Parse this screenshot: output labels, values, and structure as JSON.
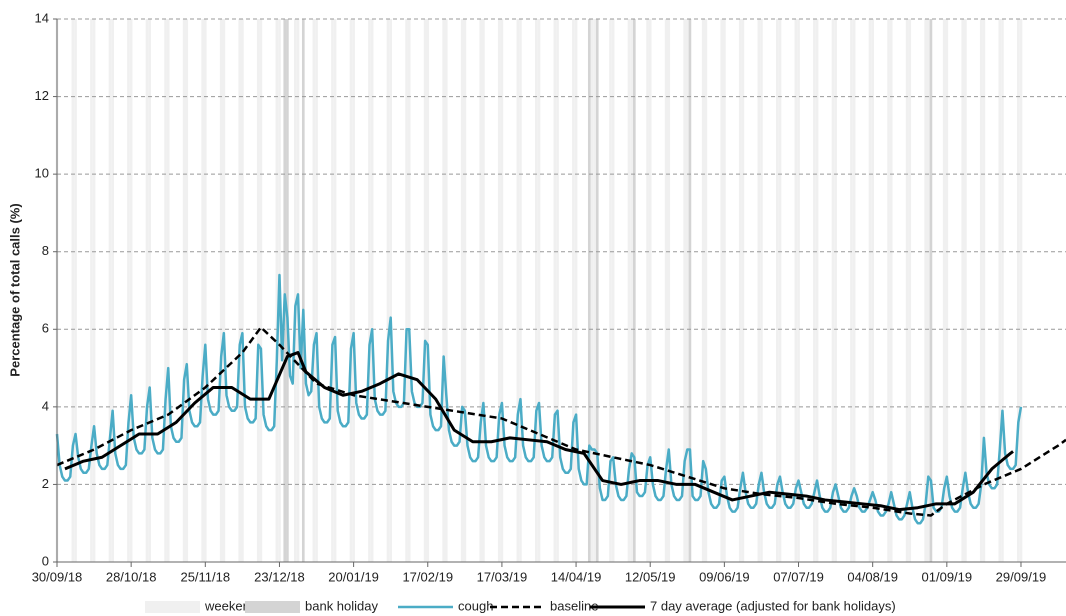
{
  "chart_data": {
    "type": "line",
    "y_label": "Percentage of total calls (%)",
    "xlim": [
      0,
      381
    ],
    "ylim": [
      0,
      14
    ],
    "yticks": [
      0,
      2,
      4,
      6,
      8,
      10,
      12,
      14
    ],
    "xticks": [
      {
        "value": 0,
        "label": "30/09/18"
      },
      {
        "value": 28,
        "label": "28/10/18"
      },
      {
        "value": 56,
        "label": "25/11/18"
      },
      {
        "value": 84,
        "label": "23/12/18"
      },
      {
        "value": 112,
        "label": "20/01/19"
      },
      {
        "value": 140,
        "label": "17/02/19"
      },
      {
        "value": 168,
        "label": "17/03/19"
      },
      {
        "value": 196,
        "label": "14/04/19"
      },
      {
        "value": 224,
        "label": "12/05/19"
      },
      {
        "value": 252,
        "label": "09/06/19"
      },
      {
        "value": 280,
        "label": "07/07/19"
      },
      {
        "value": 308,
        "label": "04/08/19"
      },
      {
        "value": 336,
        "label": "01/09/19"
      },
      {
        "value": 364,
        "label": "29/09/19"
      }
    ],
    "grid": true,
    "series": [
      {
        "name": "weekend",
        "kind": "shade",
        "color": "#f0f0f0",
        "x": [
          0,
          6,
          7,
          13,
          14,
          20,
          21,
          27,
          28,
          34,
          35,
          41,
          42,
          48,
          49,
          55,
          56,
          62,
          63,
          69,
          70,
          76,
          77,
          83,
          84,
          90,
          91,
          97,
          98,
          104,
          105,
          111,
          112,
          118,
          119,
          125,
          126,
          132,
          133,
          139,
          140,
          146,
          147,
          153,
          154,
          160,
          161,
          167,
          168,
          174,
          175,
          181,
          182,
          188,
          189,
          195,
          196,
          202,
          203,
          209,
          210,
          216,
          217,
          223,
          224,
          230,
          231,
          237,
          238,
          244,
          245,
          251,
          252,
          258,
          259,
          265,
          266,
          272,
          273,
          279,
          280,
          286,
          287,
          293,
          294,
          300,
          301,
          307,
          308,
          314,
          315,
          321,
          322,
          328,
          329,
          335,
          336,
          342,
          343,
          349,
          350,
          356,
          357,
          363,
          364
        ]
      },
      {
        "name": "bank holiday",
        "kind": "shade",
        "color": "#d4d4d4",
        "x": [
          86,
          87,
          93,
          201,
          204,
          218,
          239,
          330
        ]
      },
      {
        "name": "cough",
        "kind": "line",
        "color": "#4bacc6",
        "width": 2.5,
        "dash": false,
        "x": [
          0,
          1,
          2,
          3,
          4,
          5,
          6,
          7,
          8,
          9,
          10,
          11,
          12,
          13,
          14,
          15,
          16,
          17,
          18,
          19,
          20,
          21,
          22,
          23,
          24,
          25,
          26,
          27,
          28,
          29,
          30,
          31,
          32,
          33,
          34,
          35,
          36,
          37,
          38,
          39,
          40,
          41,
          42,
          43,
          44,
          45,
          46,
          47,
          48,
          49,
          50,
          51,
          52,
          53,
          54,
          55,
          56,
          57,
          58,
          59,
          60,
          61,
          62,
          63,
          64,
          65,
          66,
          67,
          68,
          69,
          70,
          71,
          72,
          73,
          74,
          75,
          76,
          77,
          78,
          79,
          80,
          81,
          82,
          83,
          84,
          85,
          86,
          87,
          88,
          89,
          90,
          91,
          92,
          93,
          94,
          95,
          96,
          97,
          98,
          99,
          100,
          101,
          102,
          103,
          104,
          105,
          106,
          107,
          108,
          109,
          110,
          111,
          112,
          113,
          114,
          115,
          116,
          117,
          118,
          119,
          120,
          121,
          122,
          123,
          124,
          125,
          126,
          127,
          128,
          129,
          130,
          131,
          132,
          133,
          134,
          135,
          136,
          137,
          138,
          139,
          140,
          141,
          142,
          143,
          144,
          145,
          146,
          147,
          148,
          149,
          150,
          151,
          152,
          153,
          154,
          155,
          156,
          157,
          158,
          159,
          160,
          161,
          162,
          163,
          164,
          165,
          166,
          167,
          168,
          169,
          170,
          171,
          172,
          173,
          174,
          175,
          176,
          177,
          178,
          179,
          180,
          181,
          182,
          183,
          184,
          185,
          186,
          187,
          188,
          189,
          190,
          191,
          192,
          193,
          194,
          195,
          196,
          197,
          198,
          199,
          200,
          201,
          202,
          203,
          204,
          205,
          206,
          207,
          208,
          209,
          210,
          211,
          212,
          213,
          214,
          215,
          216,
          217,
          218,
          219,
          220,
          221,
          222,
          223,
          224,
          225,
          226,
          227,
          228,
          229,
          230,
          231,
          232,
          233,
          234,
          235,
          236,
          237,
          238,
          239,
          240,
          241,
          242,
          243,
          244,
          245,
          246,
          247,
          248,
          249,
          250,
          251,
          252,
          253,
          254,
          255,
          256,
          257,
          258,
          259,
          260,
          261,
          262,
          263,
          264,
          265,
          266,
          267,
          268,
          269,
          270,
          271,
          272,
          273,
          274,
          275,
          276,
          277,
          278,
          279,
          280,
          281,
          282,
          283,
          284,
          285,
          286,
          287,
          288,
          289,
          290,
          291,
          292,
          293,
          294,
          295,
          296,
          297,
          298,
          299,
          300,
          301,
          302,
          303,
          304,
          305,
          306,
          307,
          308,
          309,
          310,
          311,
          312,
          313,
          314,
          315,
          316,
          317,
          318,
          319,
          320,
          321,
          322,
          323,
          324,
          325,
          326,
          327,
          328,
          329,
          330,
          331,
          332,
          333,
          334,
          335,
          336,
          337,
          338,
          339,
          340,
          341,
          342,
          343,
          344,
          345,
          346,
          347,
          348,
          349,
          350,
          351,
          352,
          353,
          354,
          355,
          356,
          357,
          358,
          359,
          360,
          361,
          362,
          363,
          364
        ],
        "values": [
          3.3,
          2.5,
          2.2,
          2.1,
          2.1,
          2.2,
          3.0,
          3.3,
          2.7,
          2.4,
          2.3,
          2.3,
          2.4,
          3.0,
          3.5,
          2.8,
          2.5,
          2.4,
          2.4,
          2.5,
          3.2,
          3.9,
          2.8,
          2.5,
          2.4,
          2.4,
          2.5,
          3.6,
          4.3,
          3.2,
          2.9,
          2.8,
          2.8,
          2.9,
          4.0,
          4.5,
          3.2,
          2.9,
          2.8,
          2.8,
          2.9,
          4.2,
          5.0,
          3.5,
          3.2,
          3.1,
          3.1,
          3.2,
          4.7,
          5.1,
          3.9,
          3.6,
          3.5,
          3.5,
          3.6,
          4.8,
          5.6,
          4.2,
          3.9,
          3.8,
          3.8,
          3.9,
          5.3,
          5.9,
          4.3,
          4.0,
          3.9,
          3.9,
          4.0,
          5.6,
          5.9,
          4.0,
          3.7,
          3.6,
          3.6,
          3.7,
          5.6,
          5.5,
          3.8,
          3.5,
          3.4,
          3.4,
          3.5,
          5.2,
          7.4,
          5.2,
          6.9,
          6.3,
          4.8,
          4.6,
          6.6,
          6.9,
          5.0,
          6.5,
          4.6,
          4.3,
          4.4,
          5.6,
          5.9,
          4.0,
          3.7,
          3.6,
          3.6,
          3.7,
          5.6,
          5.8,
          3.9,
          3.6,
          3.5,
          3.5,
          3.6,
          5.5,
          5.9,
          4.1,
          3.8,
          3.7,
          3.7,
          3.8,
          5.6,
          6.0,
          4.2,
          3.9,
          3.8,
          3.8,
          3.9,
          5.7,
          6.3,
          4.4,
          4.1,
          4.0,
          4.0,
          4.1,
          6.0,
          6.0,
          4.4,
          4.1,
          4.0,
          4.0,
          4.1,
          5.7,
          5.6,
          3.8,
          3.5,
          3.4,
          3.4,
          3.5,
          5.3,
          4.3,
          3.4,
          3.1,
          3.0,
          3.0,
          3.1,
          4.0,
          3.9,
          3.0,
          2.7,
          2.6,
          2.6,
          2.7,
          3.6,
          4.1,
          3.0,
          2.7,
          2.6,
          2.6,
          2.7,
          3.8,
          4.1,
          3.0,
          2.7,
          2.6,
          2.6,
          2.7,
          3.8,
          4.2,
          3.0,
          2.7,
          2.6,
          2.6,
          2.7,
          3.9,
          4.1,
          3.0,
          2.7,
          2.6,
          2.6,
          2.7,
          3.8,
          3.9,
          2.7,
          2.4,
          2.3,
          2.3,
          2.4,
          3.6,
          3.8,
          2.4,
          2.1,
          2.0,
          2.0,
          3.0,
          2.9,
          2.9,
          2.8,
          1.9,
          1.6,
          1.6,
          1.7,
          2.6,
          2.7,
          2.0,
          1.7,
          1.6,
          1.6,
          1.7,
          2.4,
          2.8,
          2.7,
          1.8,
          1.7,
          1.7,
          1.8,
          2.5,
          2.7,
          2.0,
          1.7,
          1.6,
          1.6,
          1.7,
          2.4,
          2.9,
          2.0,
          1.7,
          1.6,
          1.6,
          1.7,
          2.6,
          2.9,
          2.9,
          1.7,
          1.6,
          1.6,
          1.7,
          2.6,
          2.4,
          1.8,
          1.5,
          1.4,
          1.4,
          1.5,
          2.1,
          2.2,
          1.7,
          1.4,
          1.3,
          1.3,
          1.4,
          1.9,
          2.3,
          1.8,
          1.5,
          1.4,
          1.4,
          1.5,
          2.0,
          2.3,
          1.8,
          1.5,
          1.4,
          1.4,
          1.5,
          2.0,
          2.2,
          1.8,
          1.5,
          1.4,
          1.4,
          1.5,
          1.9,
          2.1,
          1.8,
          1.5,
          1.4,
          1.4,
          1.5,
          1.8,
          2.1,
          1.7,
          1.4,
          1.3,
          1.3,
          1.4,
          1.8,
          2.0,
          1.7,
          1.4,
          1.3,
          1.3,
          1.4,
          1.7,
          1.9,
          1.7,
          1.4,
          1.3,
          1.3,
          1.4,
          1.6,
          1.8,
          1.6,
          1.3,
          1.2,
          1.2,
          1.3,
          1.5,
          1.8,
          1.5,
          1.2,
          1.1,
          1.1,
          1.2,
          1.5,
          1.8,
          1.4,
          1.1,
          1.0,
          1.0,
          1.1,
          1.5,
          2.2,
          2.1,
          1.4,
          1.3,
          1.3,
          1.4,
          1.9,
          2.2,
          1.7,
          1.4,
          1.3,
          1.3,
          1.4,
          1.9,
          2.3,
          1.8,
          1.5,
          1.4,
          1.4,
          1.5,
          2.0,
          3.2,
          2.3,
          2.0,
          1.9,
          1.9,
          2.0,
          2.9,
          3.9,
          2.8,
          2.5,
          2.4,
          2.4,
          2.5,
          3.6,
          4.0
        ]
      },
      {
        "name": "baseline",
        "kind": "line",
        "color": "#000000",
        "width": 2.5,
        "dash": true,
        "x": [
          0,
          14,
          28,
          42,
          56,
          70,
          77,
          84,
          98,
          112,
          126,
          140,
          154,
          168,
          182,
          196,
          210,
          224,
          238,
          252,
          266,
          280,
          294,
          308,
          322,
          330,
          336,
          350,
          364,
          378,
          381
        ],
        "values": [
          2.5,
          2.9,
          3.4,
          3.8,
          4.5,
          5.4,
          6.05,
          5.6,
          4.6,
          4.3,
          4.15,
          4.0,
          3.85,
          3.7,
          3.3,
          2.9,
          2.7,
          2.5,
          2.2,
          1.9,
          1.75,
          1.65,
          1.5,
          1.4,
          1.25,
          1.2,
          1.5,
          2.0,
          2.4,
          3.0,
          3.15
        ]
      },
      {
        "name": "7 day average (adjusted for bank holidays)",
        "kind": "line",
        "color": "#000000",
        "width": 3,
        "dash": false,
        "x": [
          3,
          10,
          17,
          24,
          31,
          38,
          45,
          52,
          59,
          66,
          73,
          80,
          87,
          91,
          94,
          101,
          108,
          115,
          122,
          129,
          136,
          143,
          150,
          157,
          164,
          171,
          178,
          185,
          192,
          199,
          206,
          213,
          220,
          227,
          234,
          241,
          248,
          255,
          262,
          269,
          276,
          283,
          290,
          297,
          304,
          311,
          318,
          325,
          332,
          339,
          346,
          353,
          360,
          361
        ],
        "values": [
          2.4,
          2.6,
          2.7,
          3.0,
          3.3,
          3.3,
          3.6,
          4.1,
          4.5,
          4.5,
          4.2,
          4.2,
          5.3,
          5.4,
          4.9,
          4.5,
          4.3,
          4.4,
          4.6,
          4.85,
          4.7,
          4.2,
          3.4,
          3.1,
          3.1,
          3.2,
          3.15,
          3.1,
          2.9,
          2.8,
          2.1,
          2.0,
          2.1,
          2.1,
          2.0,
          2.0,
          1.8,
          1.6,
          1.7,
          1.8,
          1.75,
          1.7,
          1.6,
          1.55,
          1.5,
          1.45,
          1.35,
          1.4,
          1.5,
          1.5,
          1.8,
          2.4,
          2.8,
          2.85
        ]
      }
    ]
  }
}
